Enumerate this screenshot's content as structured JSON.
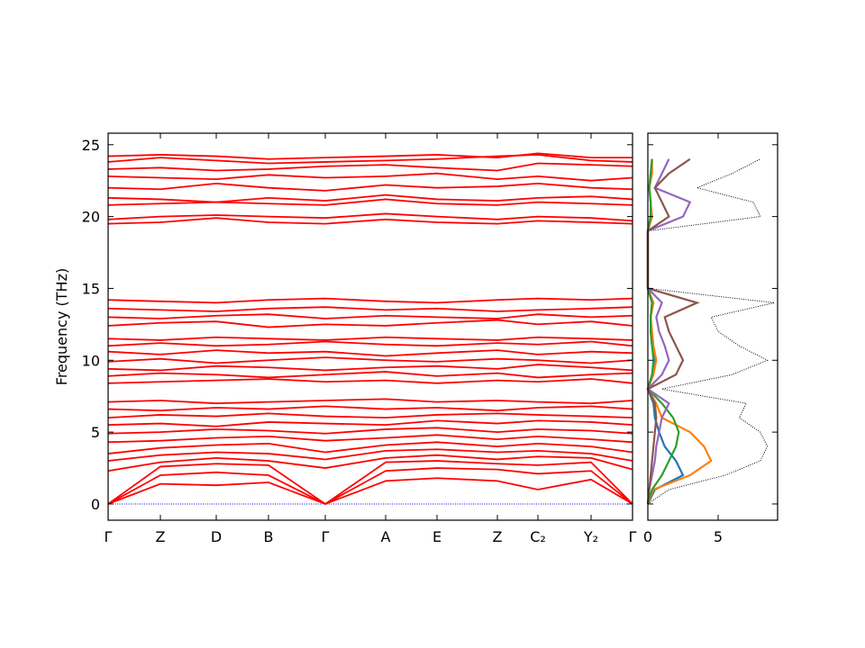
{
  "chart_data": [
    {
      "type": "line",
      "ylabel": "Frequency (THz)",
      "color": "#ff0000",
      "xlim": [
        0,
        5.82
      ],
      "ylim": [
        -1.13,
        25.8
      ],
      "xticks": [
        {
          "value": 0,
          "label": "Γ"
        },
        {
          "value": 0.58,
          "label": "Z"
        },
        {
          "value": 1.2,
          "label": "D"
        },
        {
          "value": 1.78,
          "label": "B"
        },
        {
          "value": 2.41,
          "label": "Γ"
        },
        {
          "value": 3.08,
          "label": "A"
        },
        {
          "value": 3.65,
          "label": "E"
        },
        {
          "value": 4.32,
          "label": "Z"
        },
        {
          "value": 4.77,
          "label": "C₂"
        },
        {
          "value": 5.36,
          "label": "Y₂"
        },
        {
          "value": 5.82,
          "label": "Γ"
        }
      ],
      "yticks": [
        0,
        5,
        10,
        15,
        20,
        25
      ],
      "x": [
        0,
        0.58,
        1.2,
        1.78,
        2.41,
        3.08,
        3.65,
        4.32,
        4.77,
        5.36,
        5.82
      ],
      "series": [
        {
          "values": [
            0,
            1.4,
            1.3,
            1.5,
            0,
            1.6,
            1.8,
            1.6,
            1.0,
            1.7,
            0
          ]
        },
        {
          "values": [
            0,
            2.0,
            2.2,
            2.0,
            0,
            2.3,
            2.5,
            2.4,
            2.1,
            2.3,
            0
          ]
        },
        {
          "values": [
            0,
            2.6,
            2.8,
            2.7,
            0,
            2.9,
            3.0,
            2.8,
            2.7,
            2.9,
            0
          ]
        },
        {
          "values": [
            2.3,
            2.9,
            3.2,
            3.0,
            2.5,
            3.2,
            3.4,
            3.1,
            3.3,
            3.2,
            2.4
          ]
        },
        {
          "values": [
            3.0,
            3.4,
            3.6,
            3.5,
            3.1,
            3.7,
            3.8,
            3.6,
            3.7,
            3.5,
            3.0
          ]
        },
        {
          "values": [
            3.5,
            3.9,
            4.1,
            4.2,
            3.6,
            4.1,
            4.3,
            4.0,
            4.2,
            4.0,
            3.6
          ]
        },
        {
          "values": [
            4.3,
            4.4,
            4.6,
            4.7,
            4.4,
            4.6,
            4.8,
            4.5,
            4.7,
            4.5,
            4.3
          ]
        },
        {
          "values": [
            4.9,
            5.0,
            5.2,
            5.1,
            4.9,
            5.2,
            5.3,
            5.0,
            5.2,
            5.1,
            4.9
          ]
        },
        {
          "values": [
            5.5,
            5.6,
            5.4,
            5.7,
            5.6,
            5.5,
            5.8,
            5.6,
            5.8,
            5.7,
            5.5
          ]
        },
        {
          "values": [
            6.0,
            6.2,
            6.1,
            6.3,
            6.1,
            6.0,
            6.2,
            6.3,
            6.2,
            6.1,
            6.0
          ]
        },
        {
          "values": [
            6.6,
            6.5,
            6.7,
            6.6,
            6.8,
            6.6,
            6.7,
            6.5,
            6.7,
            6.8,
            6.6
          ]
        },
        {
          "values": [
            7.1,
            7.2,
            7.0,
            7.1,
            7.2,
            7.3,
            7.1,
            7.2,
            7.1,
            7.0,
            7.2
          ]
        },
        {
          "values": [
            8.4,
            8.5,
            8.6,
            8.7,
            8.5,
            8.6,
            8.4,
            8.6,
            8.5,
            8.7,
            8.4
          ]
        },
        {
          "values": [
            8.9,
            9.1,
            9.0,
            8.8,
            9.0,
            9.2,
            8.9,
            9.1,
            8.8,
            9.0,
            9.1
          ]
        },
        {
          "values": [
            9.4,
            9.3,
            9.6,
            9.5,
            9.3,
            9.5,
            9.6,
            9.4,
            9.7,
            9.5,
            9.3
          ]
        },
        {
          "values": [
            9.9,
            10.1,
            9.8,
            10.0,
            10.2,
            10.0,
            9.9,
            10.1,
            10.0,
            9.8,
            10.0
          ]
        },
        {
          "values": [
            10.6,
            10.4,
            10.7,
            10.5,
            10.6,
            10.3,
            10.5,
            10.7,
            10.4,
            10.6,
            10.5
          ]
        },
        {
          "values": [
            11.0,
            11.2,
            11.0,
            11.1,
            11.3,
            11.1,
            11.0,
            11.2,
            11.1,
            11.3,
            11.0
          ]
        },
        {
          "values": [
            11.5,
            11.4,
            11.6,
            11.5,
            11.4,
            11.6,
            11.5,
            11.4,
            11.6,
            11.5,
            11.4
          ]
        },
        {
          "values": [
            12.4,
            12.6,
            12.7,
            12.3,
            12.5,
            12.4,
            12.6,
            12.8,
            12.5,
            12.7,
            12.4
          ]
        },
        {
          "values": [
            13.0,
            12.9,
            13.1,
            13.2,
            12.9,
            13.1,
            13.0,
            12.9,
            13.2,
            13.0,
            13.1
          ]
        },
        {
          "values": [
            13.6,
            13.5,
            13.4,
            13.6,
            13.7,
            13.5,
            13.6,
            13.4,
            13.5,
            13.6,
            13.7
          ]
        },
        {
          "values": [
            14.2,
            14.1,
            14.0,
            14.2,
            14.3,
            14.1,
            14.0,
            14.2,
            14.3,
            14.2,
            14.3
          ]
        },
        {
          "values": [
            19.5,
            19.6,
            19.9,
            19.6,
            19.5,
            19.8,
            19.6,
            19.5,
            19.7,
            19.6,
            19.5
          ]
        },
        {
          "values": [
            19.8,
            20.0,
            20.1,
            20.0,
            19.9,
            20.2,
            20.0,
            19.8,
            20.0,
            19.9,
            19.7
          ]
        },
        {
          "values": [
            20.8,
            20.9,
            21.0,
            20.9,
            20.8,
            21.2,
            20.9,
            20.8,
            21.0,
            20.9,
            20.8
          ]
        },
        {
          "values": [
            21.3,
            21.2,
            21.0,
            21.3,
            21.1,
            21.5,
            21.2,
            21.1,
            21.3,
            21.4,
            21.2
          ]
        },
        {
          "values": [
            22.0,
            21.9,
            22.3,
            22.0,
            21.8,
            22.2,
            22.0,
            22.1,
            22.3,
            22.0,
            21.9
          ]
        },
        {
          "values": [
            22.8,
            22.7,
            22.6,
            22.9,
            22.7,
            22.8,
            23.0,
            22.6,
            22.8,
            22.5,
            22.7
          ]
        },
        {
          "values": [
            23.3,
            23.4,
            23.2,
            23.3,
            23.5,
            23.6,
            23.4,
            23.2,
            23.7,
            23.6,
            23.5
          ]
        },
        {
          "values": [
            23.8,
            24.1,
            23.9,
            23.7,
            23.8,
            23.9,
            24.0,
            24.2,
            24.3,
            23.9,
            23.8
          ]
        },
        {
          "values": [
            24.2,
            24.3,
            24.2,
            24.0,
            24.1,
            24.2,
            24.3,
            24.1,
            24.4,
            24.1,
            24.1
          ]
        }
      ]
    },
    {
      "type": "line",
      "orientation": "horizontal",
      "xlim": [
        0,
        9.23
      ],
      "ylim": [
        -1.13,
        25.8
      ],
      "xticks": [
        0,
        5
      ],
      "yticks": [
        0,
        5,
        10,
        15,
        20,
        25
      ],
      "y": [
        0,
        1,
        2,
        3,
        4,
        5,
        6,
        7,
        8,
        9,
        10,
        11,
        12,
        13,
        14,
        15,
        16,
        17,
        18,
        19,
        20,
        21,
        22,
        23,
        24
      ],
      "series": [
        {
          "color": "#000000",
          "style": "dotted",
          "values": [
            0,
            1.5,
            5.5,
            8.0,
            8.5,
            8.0,
            6.5,
            7.0,
            1.0,
            6.0,
            8.5,
            6.5,
            5.0,
            4.5,
            9.0,
            0,
            0,
            0,
            0,
            0,
            8.0,
            7.5,
            3.5,
            6.0,
            8.0
          ]
        },
        {
          "color": "#1f77b4",
          "values": [
            0,
            0.5,
            2.5,
            2.0,
            1.2,
            0.8,
            0.5,
            0.4,
            0,
            0.3,
            0.5,
            0.3,
            0.2,
            0.2,
            0.3,
            0,
            0,
            0,
            0,
            0,
            0.2,
            0.2,
            0.1,
            0.2,
            0.3
          ]
        },
        {
          "color": "#ff7f0e",
          "values": [
            0,
            0.4,
            3.0,
            4.5,
            4.0,
            3.0,
            1.0,
            0.6,
            0,
            0.4,
            0.6,
            0.4,
            0.3,
            0.2,
            0.4,
            0,
            0,
            0,
            0,
            0,
            0.3,
            0.2,
            0.1,
            0.3,
            0.3
          ]
        },
        {
          "color": "#2ca02c",
          "values": [
            0,
            0.3,
            1.0,
            1.5,
            2.0,
            2.2,
            1.8,
            1.0,
            0,
            0.3,
            0.4,
            0.3,
            0.2,
            0.2,
            0.3,
            0,
            0,
            0,
            0,
            0,
            0.2,
            0.2,
            0.1,
            0.2,
            0.3
          ]
        },
        {
          "color": "#9467bd",
          "values": [
            0,
            0.1,
            0.3,
            0.5,
            0.6,
            0.8,
            1.0,
            1.5,
            0,
            1.0,
            1.5,
            1.2,
            0.8,
            0.6,
            1.0,
            0,
            0,
            0,
            0,
            0,
            2.5,
            3.0,
            0.5,
            1.0,
            1.5
          ]
        },
        {
          "color": "#8c564b",
          "values": [
            0,
            0.1,
            0.2,
            0.3,
            0.4,
            0.5,
            0.6,
            0.5,
            0,
            2.0,
            2.5,
            2.0,
            1.5,
            1.2,
            3.5,
            0,
            0,
            0,
            0,
            0,
            1.5,
            1.0,
            0.5,
            1.5,
            3.0
          ]
        }
      ]
    }
  ]
}
